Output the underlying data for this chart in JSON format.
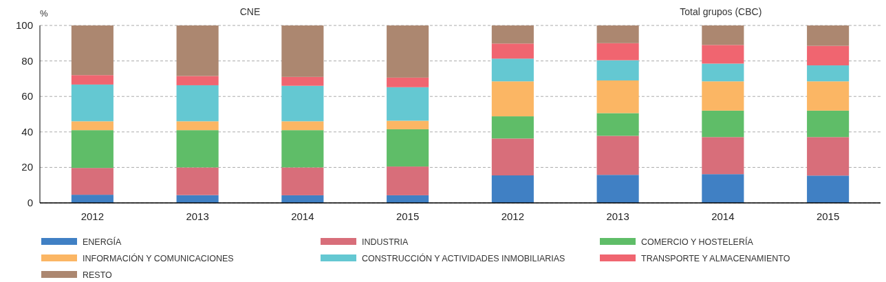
{
  "chart_data": {
    "type": "bar",
    "stacked": true,
    "ylabel": "%",
    "annotations": [
      "CNE",
      "Total grupos (CBC)"
    ],
    "categories": [
      "2012",
      "2013",
      "2014",
      "2015",
      "2012",
      "2013",
      "2014",
      "2015"
    ],
    "series": [
      {
        "name": "ENERGÍA",
        "color": "#4080c4",
        "values": [
          4.6,
          4.4,
          4.3,
          4.3,
          15.5,
          15.8,
          16.2,
          15.4
        ]
      },
      {
        "name": "INDUSTRIA",
        "color": "#d86e7a",
        "values": [
          15.1,
          15.6,
          15.7,
          16.2,
          20.8,
          22.0,
          20.9,
          21.7
        ]
      },
      {
        "name": "COMERCIO Y HOSTELERÍA",
        "color": "#5fbd68",
        "values": [
          21.3,
          21.0,
          21.0,
          21.0,
          12.5,
          12.8,
          14.9,
          14.9
        ]
      },
      {
        "name": "INFORMACIÓN Y COMUNICACIONES",
        "color": "#fbb664",
        "values": [
          5.0,
          5.0,
          5.0,
          4.8,
          19.7,
          18.4,
          16.5,
          16.5
        ]
      },
      {
        "name": "CONSTRUCCIÓN Y ACTIVIDADES INMOBILIARIAS",
        "color": "#64c8d2",
        "values": [
          20.7,
          20.3,
          20.0,
          18.9,
          12.8,
          11.4,
          10.0,
          9.0
        ]
      },
      {
        "name": "TRANSPORTE Y ALMACENAMIENTO",
        "color": "#f06570",
        "values": [
          5.3,
          5.2,
          5.0,
          5.4,
          8.5,
          9.6,
          10.5,
          11.0
        ]
      },
      {
        "name": "RESTO",
        "color": "#ac8770",
        "values": [
          28.0,
          28.5,
          29.0,
          29.4,
          10.2,
          10.0,
          11.0,
          11.5
        ]
      }
    ],
    "ylim": [
      0,
      100
    ],
    "yticks": [
      0,
      20,
      40,
      60,
      80,
      100
    ],
    "grid": "y",
    "legend": "bottom"
  }
}
